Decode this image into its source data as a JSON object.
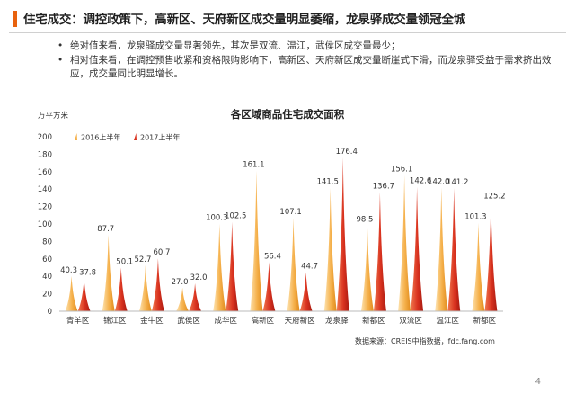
{
  "header": {
    "title": "住宅成交：调控政策下，高新区、天府新区成交量明显萎缩，龙泉驿成交量领冠全城"
  },
  "bullets": [
    "绝对值来看，龙泉驿成交量显著领先，其次是双流、温江，武侯区成交量最少；",
    "相对值来看，在调控预售收紧和资格限购影响下，高新区、天府新区成交量断崖式下滑，而龙泉驿受益于需求挤出效应，成交量同比明显增长。"
  ],
  "chart_data": {
    "type": "bar",
    "title": "各区域商品住宅成交面积",
    "ylabel": "万平方米",
    "xlabel": "",
    "ylim": [
      0,
      200
    ],
    "yticks": [
      0,
      20,
      40,
      60,
      80,
      100,
      120,
      140,
      160,
      180,
      200
    ],
    "categories": [
      "青羊区",
      "锦江区",
      "金牛区",
      "武侯区",
      "成华区",
      "高新区",
      "天府新区",
      "龙泉驿",
      "新都区",
      "双流区",
      "温江区",
      "新都区"
    ],
    "series": [
      {
        "name": "2016上半年",
        "color": "#f5b04a",
        "values": [
          40.3,
          87.7,
          52.7,
          27.0,
          100.3,
          161.1,
          107.1,
          141.5,
          98.5,
          156.1,
          142.0,
          101.3
        ]
      },
      {
        "name": "2017上半年",
        "color": "#d9321f",
        "values": [
          37.8,
          50.1,
          60.7,
          32.0,
          102.5,
          56.4,
          44.7,
          176.4,
          136.7,
          142.6,
          141.2,
          125.2
        ]
      }
    ],
    "grid": false,
    "legend": "top-left",
    "source": "数据来源：CREIS中指数据，fdc.fang.com"
  },
  "footer": {
    "page": "4"
  }
}
